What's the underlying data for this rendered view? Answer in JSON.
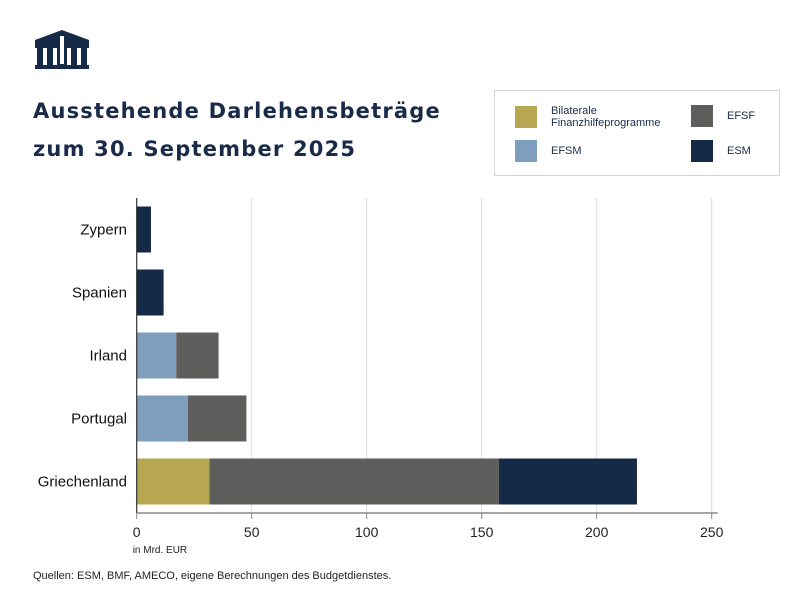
{
  "title_line1": "Ausstehende Darlehensbeträge",
  "title_line2": "zum 30. September 2025",
  "source": "Quellen: ESM, BMF, AMECO, eigene Berechnungen des Budgetdienstes.",
  "chart_data": {
    "type": "bar",
    "orientation": "horizontal",
    "stacked": true,
    "categories": [
      "Zypern",
      "Spanien",
      "Irland",
      "Portugal",
      "Griechenland"
    ],
    "series": [
      {
        "name": "Bilaterale Finanzhilfeprogramme",
        "color": "#b8a752",
        "values": [
          0,
          0,
          0,
          0,
          31.6
        ]
      },
      {
        "name": "EFSM",
        "color": "#7f9dbd",
        "values": [
          0,
          0,
          17.2,
          22.3,
          0
        ]
      },
      {
        "name": "EFSF",
        "color": "#5e5e5c",
        "values": [
          0,
          0,
          18.4,
          25.4,
          125.9
        ]
      },
      {
        "name": "ESM",
        "color": "#152a47",
        "values": [
          6.2,
          11.7,
          0,
          0,
          60.0
        ]
      }
    ],
    "xlim": [
      0,
      250
    ],
    "xticks": [
      "0",
      "50",
      "100",
      "150",
      "200",
      "250"
    ],
    "xlabel": "in Mrd. EUR",
    "grid": true,
    "legend": "top-right"
  }
}
